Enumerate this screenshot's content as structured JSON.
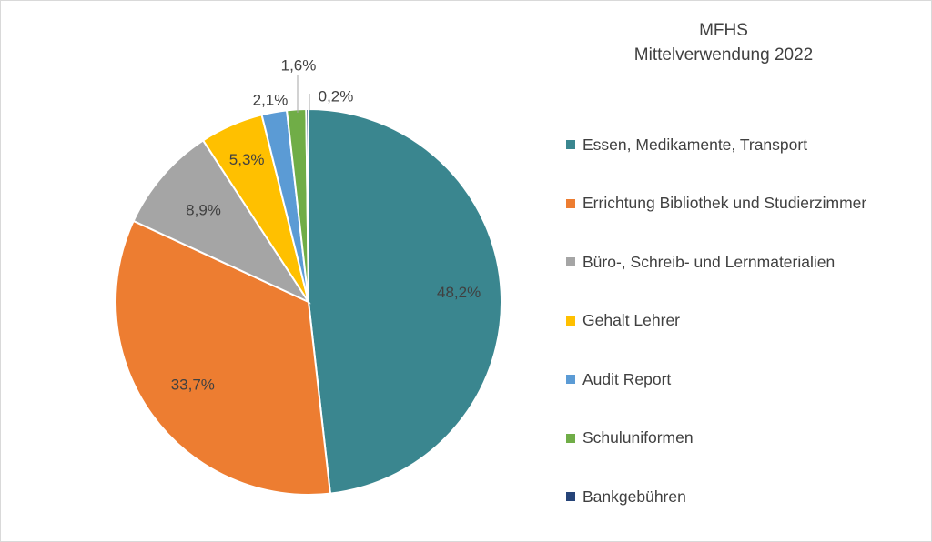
{
  "chart_data": {
    "type": "pie",
    "title": "MFHS",
    "subtitle": "Mittelverwendung 2022",
    "legend_position": "right",
    "slices": [
      {
        "name": "Essen, Medikamente, Transport",
        "value": 48.2,
        "label": "48,2%",
        "color": "#3a868f"
      },
      {
        "name": "Errichtung Bibliothek und Studierzimmer",
        "value": 33.7,
        "label": "33,7%",
        "color": "#ed7d31"
      },
      {
        "name": "Büro-, Schreib- und Lernmaterialien",
        "value": 8.9,
        "label": "8,9%",
        "color": "#a5a5a5"
      },
      {
        "name": "Gehalt Lehrer",
        "value": 5.3,
        "label": "5,3%",
        "color": "#ffc000"
      },
      {
        "name": "Audit Report",
        "value": 2.1,
        "label": "2,1%",
        "color": "#5b9bd5"
      },
      {
        "name": "Schuluniformen",
        "value": 1.6,
        "label": "1,6%",
        "color": "#70ad47"
      },
      {
        "name": "Bankgebühren",
        "value": 0.2,
        "label": "0,2%",
        "color": "#264478"
      }
    ]
  }
}
